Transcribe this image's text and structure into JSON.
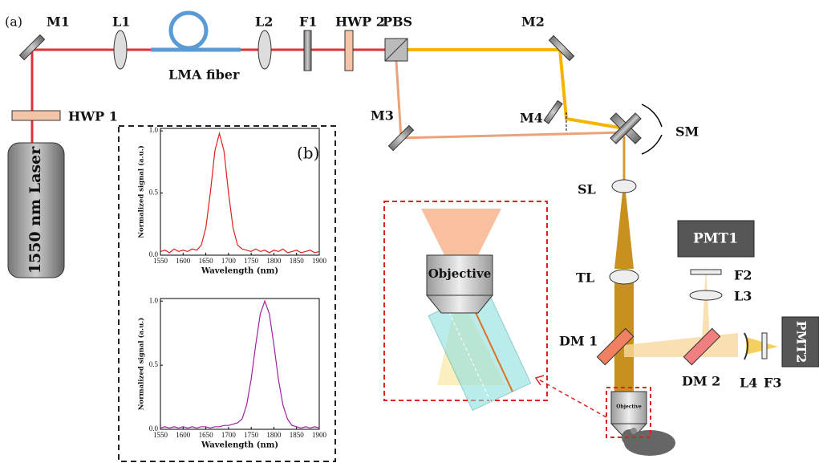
{
  "labels": [
    "(a)",
    "M1",
    "L1",
    "LMA fiber",
    "L2",
    "F1",
    "HWP 2",
    "PBS",
    "M2",
    "M3",
    "M4",
    "SM",
    "HWP 1",
    "1550 nm Laser",
    "SL",
    "TL",
    "PMT1",
    "F2",
    "L3",
    "DM 1",
    "DM 2",
    "L4",
    "F3",
    "PMT2",
    "Objective",
    "Objective",
    "(b)"
  ],
  "chart_data": [
    {
      "type": "line",
      "x_label": "Wavelength (nm)",
      "y_label": "Normalized signal (a.u.)",
      "color": "#e0201c",
      "x": [
        1550,
        1560,
        1570,
        1580,
        1590,
        1600,
        1610,
        1620,
        1630,
        1640,
        1650,
        1660,
        1670,
        1680,
        1690,
        1700,
        1710,
        1720,
        1730,
        1740,
        1750,
        1760,
        1770,
        1780,
        1790,
        1800,
        1810,
        1820,
        1830,
        1840,
        1850,
        1860,
        1870,
        1880,
        1890,
        1900
      ],
      "values": [
        0.03,
        0.04,
        0.02,
        0.05,
        0.03,
        0.04,
        0.03,
        0.05,
        0.04,
        0.08,
        0.22,
        0.5,
        0.84,
        0.98,
        0.84,
        0.5,
        0.22,
        0.08,
        0.05,
        0.04,
        0.03,
        0.05,
        0.03,
        0.04,
        0.02,
        0.04,
        0.03,
        0.05,
        0.02,
        0.03,
        0.04,
        0.02,
        0.03,
        0.04,
        0.02,
        0.03
      ],
      "xlim": [
        1550,
        1900
      ],
      "ylim": [
        0,
        1.02
      ],
      "xticks": [
        1550,
        1600,
        1650,
        1700,
        1750,
        1800,
        1850,
        1900
      ],
      "yticks": [
        {
          "value": 0,
          "label": "0.0"
        },
        {
          "value": 0.5,
          "label": "0.5"
        },
        {
          "value": 1,
          "label": "1.0"
        }
      ]
    },
    {
      "type": "line",
      "x_label": "Wavelength (nm)",
      "y_label": "Normalized signal (a.u.)",
      "color": "#a020a0",
      "x": [
        1550,
        1560,
        1570,
        1580,
        1590,
        1600,
        1610,
        1620,
        1630,
        1640,
        1650,
        1660,
        1670,
        1680,
        1690,
        1700,
        1710,
        1720,
        1730,
        1740,
        1750,
        1760,
        1770,
        1780,
        1790,
        1800,
        1810,
        1820,
        1830,
        1840,
        1850,
        1860,
        1870,
        1880,
        1890,
        1900
      ],
      "values": [
        0.01,
        0.02,
        0.01,
        0.02,
        0.01,
        0.02,
        0.01,
        0.02,
        0.01,
        0.02,
        0.02,
        0.01,
        0.02,
        0.02,
        0.03,
        0.03,
        0.04,
        0.05,
        0.08,
        0.19,
        0.39,
        0.66,
        0.9,
        1.0,
        0.9,
        0.66,
        0.39,
        0.19,
        0.08,
        0.03,
        0.02,
        0.01,
        0.02,
        0.01,
        0.02,
        0.01
      ],
      "xlim": [
        1550,
        1900
      ],
      "ylim": [
        0,
        1.02
      ],
      "xticks": [
        1550,
        1600,
        1650,
        1700,
        1750,
        1800,
        1850,
        1900
      ],
      "yticks": [
        {
          "value": 0,
          "label": "0.0"
        },
        {
          "value": 0.5,
          "label": "0.5"
        },
        {
          "value": 1,
          "label": "1.0"
        }
      ]
    }
  ]
}
